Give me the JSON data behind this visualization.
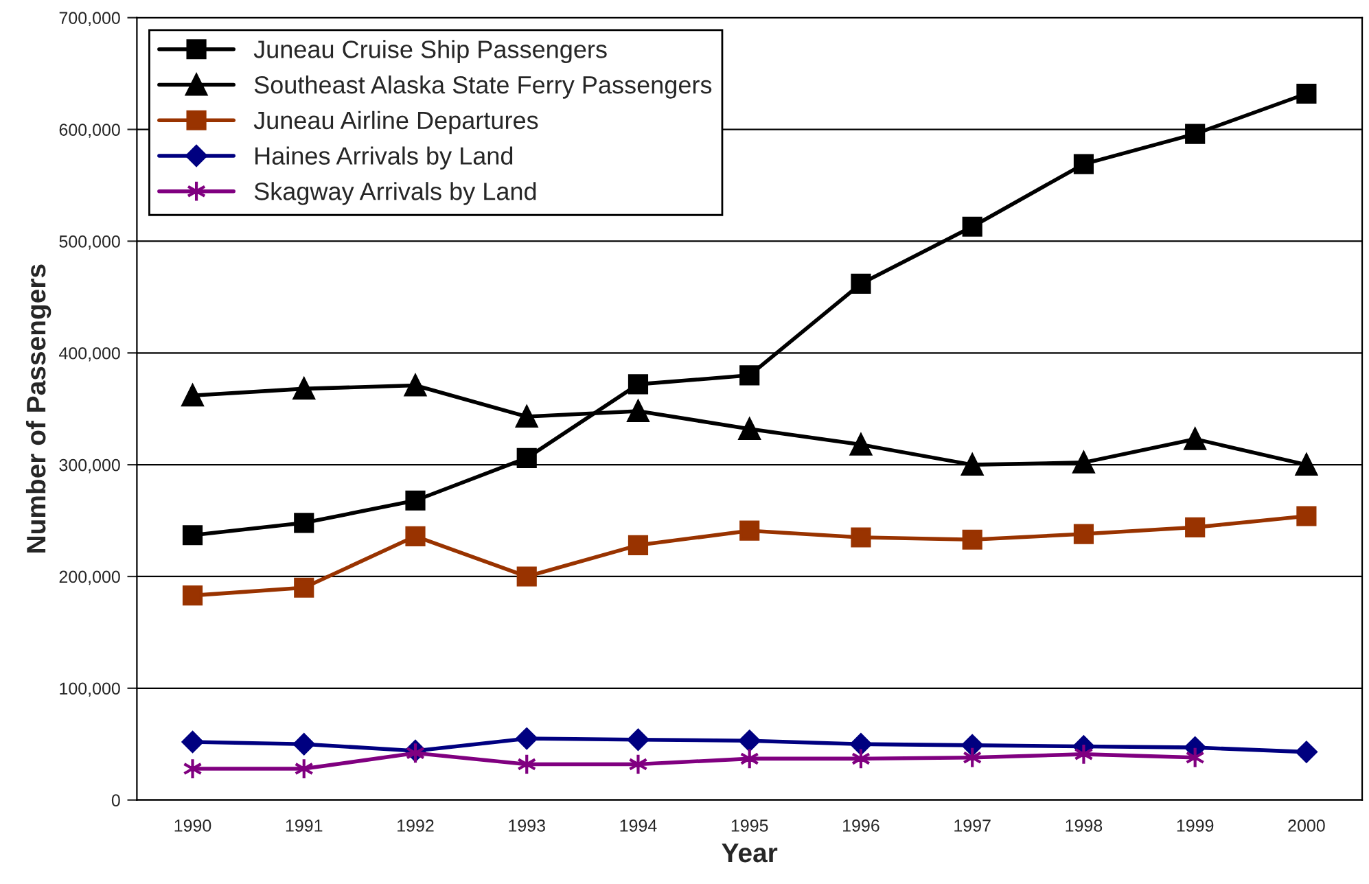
{
  "chart_data": {
    "type": "line",
    "xlabel": "Year",
    "ylabel": "Number of Passengers",
    "categories": [
      "1990",
      "1991",
      "1992",
      "1993",
      "1994",
      "1995",
      "1996",
      "1997",
      "1998",
      "1999",
      "2000"
    ],
    "series": [
      {
        "name": "Juneau Cruise Ship Passengers",
        "color": "#000000",
        "marker": "square",
        "values": [
          237000,
          248000,
          268000,
          306000,
          372000,
          380000,
          462000,
          513000,
          569000,
          596000,
          632000
        ]
      },
      {
        "name": "Southeast Alaska State Ferry Passengers",
        "color": "#000000",
        "marker": "triangle",
        "values": [
          362000,
          368000,
          371000,
          343000,
          348000,
          332000,
          318000,
          300000,
          302000,
          323000,
          300000
        ]
      },
      {
        "name": "Juneau Airline Departures",
        "color": "#993300",
        "marker": "square",
        "values": [
          183000,
          190000,
          236000,
          200000,
          228000,
          241000,
          235000,
          233000,
          238000,
          244000,
          254000
        ]
      },
      {
        "name": "Haines Arrivals by Land",
        "color": "#000080",
        "marker": "diamond",
        "values": [
          52000,
          50000,
          44000,
          55000,
          54000,
          53000,
          50000,
          49000,
          48000,
          47000,
          43000
        ]
      },
      {
        "name": "Skagway Arrivals by Land",
        "color": "#800080",
        "marker": "cross",
        "values": [
          28000,
          28000,
          42000,
          32000,
          32000,
          37000,
          37000,
          38000,
          41000,
          38000,
          null
        ]
      }
    ],
    "ylim": [
      0,
      700000
    ],
    "yticks": [
      {
        "value": 0,
        "label": "0"
      },
      {
        "value": 100000,
        "label": "100,000"
      },
      {
        "value": 200000,
        "label": "200,000"
      },
      {
        "value": 300000,
        "label": "300,000"
      },
      {
        "value": 400000,
        "label": "400,000"
      },
      {
        "value": 500000,
        "label": "500,000"
      },
      {
        "value": 600000,
        "label": "600,000"
      },
      {
        "value": 700000,
        "label": "700,000"
      }
    ],
    "grid": "y",
    "legend": "top left",
    "line_style": "solid"
  }
}
